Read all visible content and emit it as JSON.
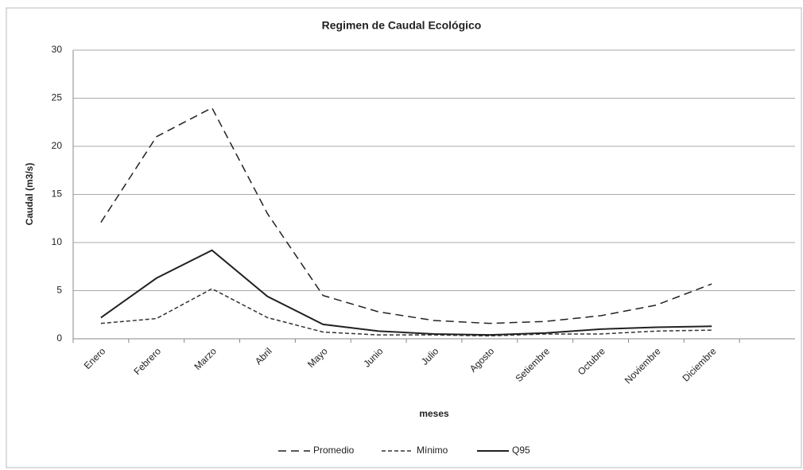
{
  "chart_data": {
    "type": "line",
    "title": "Regimen de Caudal Ecológico",
    "x_label": "meses",
    "y_label": "Caudal (m3/s)",
    "categories": [
      "Enero",
      "Febrero",
      "Marzo",
      "Abril",
      "Mayo",
      "Junio",
      "Julio",
      "Agosto",
      "Setiembre",
      "Octubre",
      "Noviembre",
      "Diciembre",
      null
    ],
    "series": [
      {
        "name": "Promedio",
        "color": "#222222",
        "dash": "10,6",
        "values": [
          12.1,
          21,
          24,
          13,
          4.5,
          2.8,
          1.9,
          1.6,
          1.8,
          2.4,
          3.5,
          5.7,
          null
        ]
      },
      {
        "name": "Mínimo",
        "color": "#333333",
        "dash": "5,3",
        "values": [
          1.6,
          2.1,
          5.2,
          2.2,
          0.7,
          0.4,
          0.4,
          0.3,
          0.5,
          0.5,
          0.8,
          0.9,
          null
        ]
      },
      {
        "name": "Q95",
        "color": "#222222",
        "dash": "none",
        "values": [
          2.2,
          6.3,
          9.2,
          4.4,
          1.5,
          0.8,
          0.5,
          0.4,
          0.6,
          1.0,
          1.2,
          1.3,
          null
        ]
      }
    ],
    "ylim": [
      0,
      30
    ],
    "yticks": [
      0,
      5,
      10,
      15,
      20,
      25,
      30
    ],
    "grid": true,
    "legend": "bottom"
  }
}
